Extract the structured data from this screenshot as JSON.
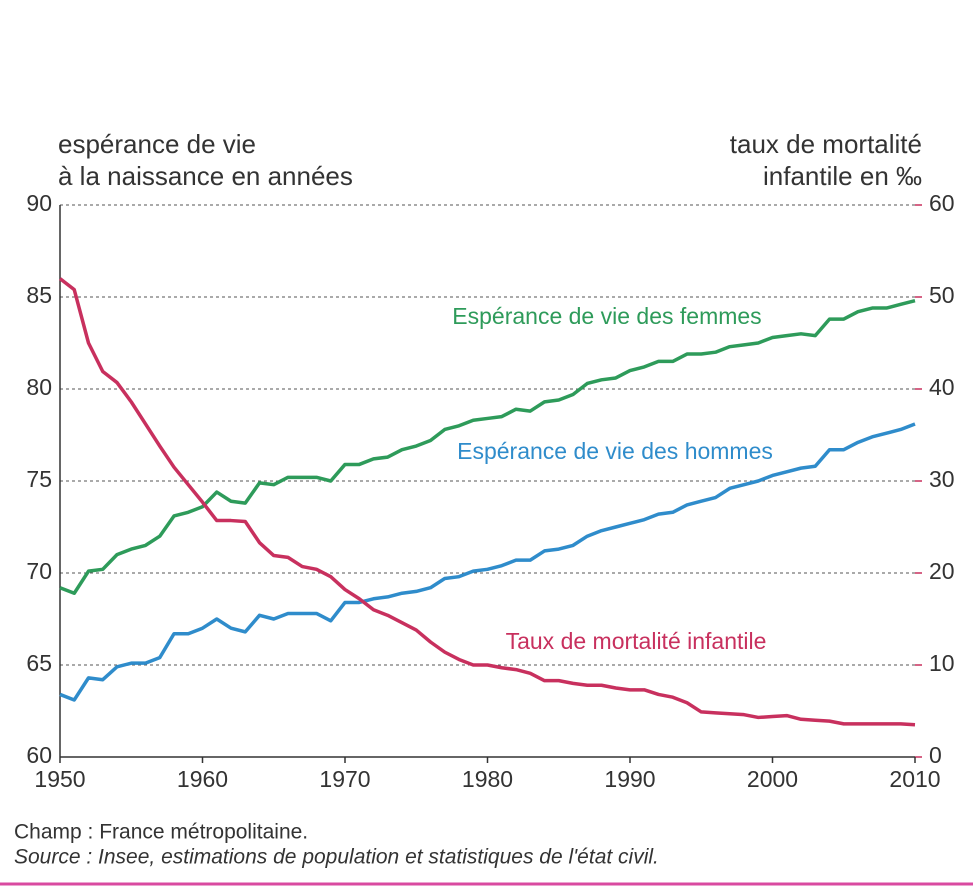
{
  "chart_data": {
    "type": "line",
    "ylabel": [
      "espérance de vie",
      "à la naissance en années"
    ],
    "y2label": [
      "taux de mortalité",
      "infantile en ‰"
    ],
    "x": [
      1950,
      1951,
      1952,
      1953,
      1954,
      1955,
      1956,
      1957,
      1958,
      1959,
      1960,
      1961,
      1962,
      1963,
      1964,
      1965,
      1966,
      1967,
      1968,
      1969,
      1970,
      1971,
      1972,
      1973,
      1974,
      1975,
      1976,
      1977,
      1978,
      1979,
      1980,
      1981,
      1982,
      1983,
      1984,
      1985,
      1986,
      1987,
      1988,
      1989,
      1990,
      1991,
      1992,
      1993,
      1994,
      1995,
      1996,
      1997,
      1998,
      1999,
      2000,
      2001,
      2002,
      2003,
      2004,
      2005,
      2006,
      2007,
      2008,
      2009,
      2010
    ],
    "series": [
      {
        "name": "Espérance de vie des femmes",
        "color": "#2e9b5a",
        "axis": "y",
        "values": [
          69.2,
          68.9,
          70.1,
          70.2,
          71.0,
          71.3,
          71.5,
          72.0,
          73.1,
          73.3,
          73.6,
          74.4,
          73.9,
          73.8,
          74.9,
          74.8,
          75.2,
          75.2,
          75.2,
          75.0,
          75.9,
          75.9,
          76.2,
          76.3,
          76.7,
          76.9,
          77.2,
          77.8,
          78.0,
          78.3,
          78.4,
          78.5,
          78.9,
          78.8,
          79.3,
          79.4,
          79.7,
          80.3,
          80.5,
          80.6,
          81.0,
          81.2,
          81.5,
          81.5,
          81.9,
          81.9,
          82.0,
          82.3,
          82.4,
          82.5,
          82.8,
          82.9,
          83.0,
          82.9,
          83.8,
          83.8,
          84.2,
          84.4,
          84.4,
          84.6,
          84.8
        ]
      },
      {
        "name": "Espérance de vie des hommes",
        "color": "#2f8ccb",
        "axis": "y",
        "values": [
          63.4,
          63.1,
          64.3,
          64.2,
          64.9,
          65.1,
          65.1,
          65.4,
          66.7,
          66.7,
          67.0,
          67.5,
          67.0,
          66.8,
          67.7,
          67.5,
          67.8,
          67.8,
          67.8,
          67.4,
          68.4,
          68.4,
          68.6,
          68.7,
          68.9,
          69.0,
          69.2,
          69.7,
          69.8,
          70.1,
          70.2,
          70.4,
          70.7,
          70.7,
          71.2,
          71.3,
          71.5,
          72.0,
          72.3,
          72.5,
          72.7,
          72.9,
          73.2,
          73.3,
          73.7,
          73.9,
          74.1,
          74.6,
          74.8,
          75.0,
          75.3,
          75.5,
          75.7,
          75.8,
          76.7,
          76.7,
          77.1,
          77.4,
          77.6,
          77.8,
          78.1
        ]
      },
      {
        "name": "Taux de mortalité infantile",
        "color": "#c8305e",
        "axis": "y2",
        "values": [
          52.0,
          50.8,
          45.0,
          41.9,
          40.7,
          38.6,
          36.2,
          33.8,
          31.5,
          29.6,
          27.7,
          25.7,
          25.7,
          25.6,
          23.3,
          21.9,
          21.7,
          20.7,
          20.4,
          19.6,
          18.2,
          17.2,
          16.0,
          15.4,
          14.6,
          13.8,
          12.5,
          11.4,
          10.6,
          10.0,
          10.0,
          9.7,
          9.5,
          9.1,
          8.3,
          8.3,
          8.0,
          7.8,
          7.8,
          7.5,
          7.3,
          7.3,
          6.8,
          6.5,
          5.9,
          4.9,
          4.8,
          4.7,
          4.6,
          4.3,
          4.4,
          4.5,
          4.1,
          4.0,
          3.9,
          3.6,
          3.6,
          3.6,
          3.6,
          3.6,
          3.5
        ]
      }
    ],
    "xlim": [
      1950,
      2010
    ],
    "xticks": [
      1950,
      1960,
      1970,
      1980,
      1990,
      2000,
      2010
    ],
    "ylim": [
      60,
      90
    ],
    "yticks": [
      60,
      65,
      70,
      75,
      80,
      85,
      90
    ],
    "y2lim": [
      0,
      60
    ],
    "y2ticks": [
      0,
      10,
      20,
      30,
      40,
      50,
      60
    ],
    "y2color": "#c8305e",
    "grid": true,
    "notes": [
      "Champ :  France métropolitaine.",
      "Source : Insee, estimations de population et statistiques de l'état civil."
    ]
  }
}
